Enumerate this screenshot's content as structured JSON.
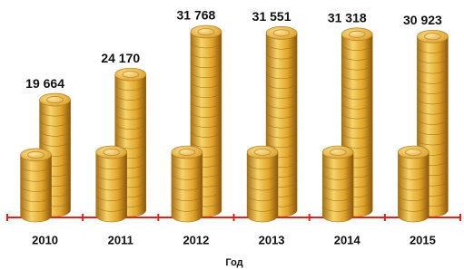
{
  "chart_data": {
    "type": "pictograph-bar",
    "x_label": "Год",
    "categories": [
      "2010",
      "2011",
      "2012",
      "2013",
      "2014",
      "2015"
    ],
    "values": [
      19664,
      24170,
      31768,
      31551,
      31318,
      30923
    ],
    "value_labels": [
      "19 664",
      "24 170",
      "31 768",
      "31 551",
      "31 318",
      "30 923"
    ],
    "axis_color": "#e0201b",
    "color": "#e8b830"
  }
}
